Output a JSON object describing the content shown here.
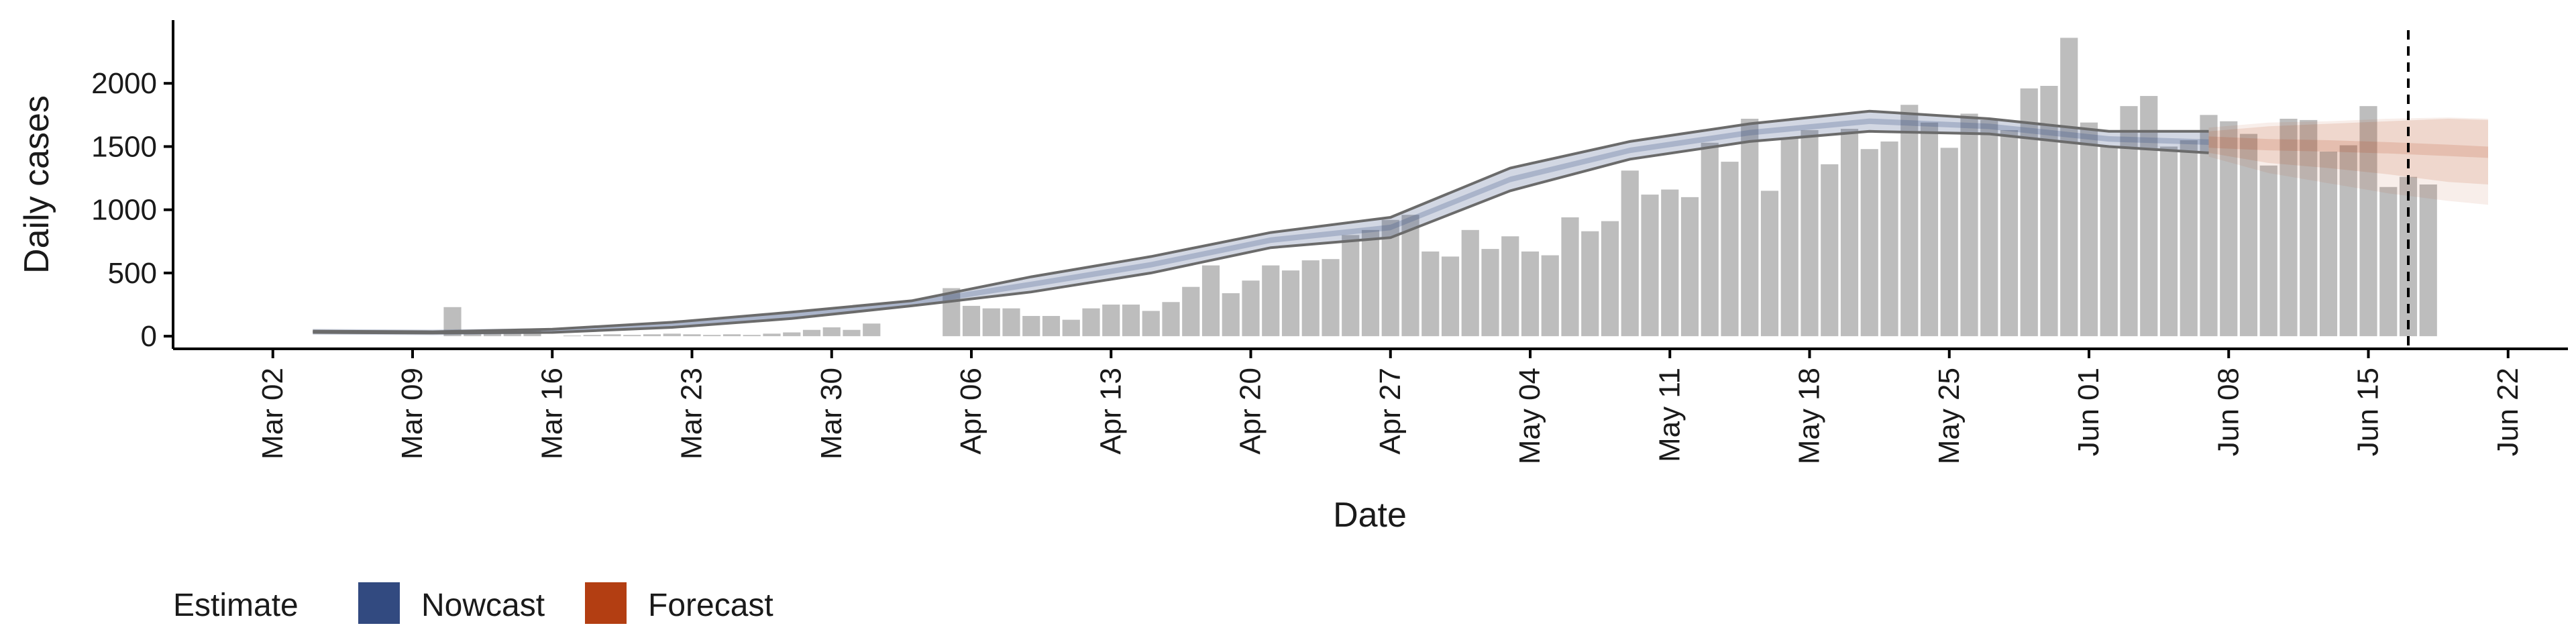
{
  "chart_data": {
    "type": "bar",
    "title": "",
    "xlabel": "Date",
    "ylabel": "Daily cases",
    "x_range": [
      "2020-02-26",
      "2020-06-25"
    ],
    "ylim": [
      -100,
      2500
    ],
    "y_ticks": [
      0,
      500,
      1000,
      1500,
      2000
    ],
    "x_ticks": [
      {
        "date": "2020-03-02",
        "label": "Mar 02"
      },
      {
        "date": "2020-03-09",
        "label": "Mar 09"
      },
      {
        "date": "2020-03-16",
        "label": "Mar 16"
      },
      {
        "date": "2020-03-23",
        "label": "Mar 23"
      },
      {
        "date": "2020-03-30",
        "label": "Mar 30"
      },
      {
        "date": "2020-04-06",
        "label": "Apr 06"
      },
      {
        "date": "2020-04-13",
        "label": "Apr 13"
      },
      {
        "date": "2020-04-20",
        "label": "Apr 20"
      },
      {
        "date": "2020-04-27",
        "label": "Apr 27"
      },
      {
        "date": "2020-05-04",
        "label": "May 04"
      },
      {
        "date": "2020-05-11",
        "label": "May 11"
      },
      {
        "date": "2020-05-18",
        "label": "May 18"
      },
      {
        "date": "2020-05-25",
        "label": "May 25"
      },
      {
        "date": "2020-06-01",
        "label": "Jun 01"
      },
      {
        "date": "2020-06-08",
        "label": "Jun 08"
      },
      {
        "date": "2020-06-15",
        "label": "Jun 15"
      },
      {
        "date": "2020-06-22",
        "label": "Jun 22"
      }
    ],
    "bars": {
      "start_date": "2020-03-04",
      "values": [
        0,
        0,
        0,
        0,
        0,
        0,
        0,
        230,
        30,
        40,
        20,
        50,
        0,
        5,
        10,
        15,
        10,
        15,
        20,
        15,
        10,
        15,
        10,
        20,
        30,
        50,
        70,
        50,
        100,
        0,
        0,
        0,
        380,
        240,
        220,
        220,
        160,
        160,
        130,
        220,
        250,
        250,
        200,
        270,
        390,
        560,
        340,
        440,
        560,
        520,
        600,
        610,
        800,
        840,
        920,
        960,
        670,
        630,
        840,
        690,
        790,
        670,
        640,
        940,
        830,
        910,
        1310,
        1120,
        1160,
        1100,
        1530,
        1380,
        1720,
        1150,
        1570,
        1630,
        1360,
        1640,
        1480,
        1540,
        1830,
        1690,
        1490,
        1760,
        1710,
        1630,
        1960,
        1980,
        2360,
        1690,
        1500,
        1820,
        1900,
        1500,
        1550,
        1750,
        1700,
        1600,
        1350,
        1720,
        1710,
        1460,
        1510,
        1820,
        1180,
        1260,
        1200
      ]
    },
    "series": [
      {
        "name": "Nowcast",
        "color": "#324a80",
        "x": [
          "2020-03-04",
          "2020-03-10",
          "2020-03-16",
          "2020-03-22",
          "2020-03-28",
          "2020-04-03",
          "2020-04-09",
          "2020-04-15",
          "2020-04-21",
          "2020-04-27",
          "2020-05-03",
          "2020-05-09",
          "2020-05-15",
          "2020-05-21",
          "2020-05-27",
          "2020-06-02",
          "2020-06-07"
        ],
        "lower": [
          30,
          25,
          30,
          70,
          140,
          240,
          350,
          500,
          700,
          780,
          1150,
          1400,
          1540,
          1620,
          1600,
          1500,
          1450
        ],
        "upper": [
          40,
          35,
          55,
          110,
          190,
          280,
          470,
          630,
          820,
          940,
          1330,
          1540,
          1680,
          1780,
          1720,
          1620,
          1620
        ],
        "median": [
          35,
          30,
          42,
          90,
          165,
          260,
          410,
          565,
          760,
          860,
          1240,
          1470,
          1610,
          1700,
          1660,
          1560,
          1535
        ]
      },
      {
        "name": "Forecast",
        "color": "#b33e12",
        "x": [
          "2020-06-07",
          "2020-06-10",
          "2020-06-13",
          "2020-06-16",
          "2020-06-19",
          "2020-06-21"
        ],
        "lower": [
          1450,
          1370,
          1330,
          1280,
          1220,
          1200
        ],
        "upper": [
          1620,
          1660,
          1680,
          1700,
          1720,
          1710
        ],
        "median": [
          1535,
          1515,
          1505,
          1490,
          1470,
          1455
        ],
        "outer_lower": [
          1420,
          1290,
          1210,
          1130,
          1070,
          1040
        ],
        "outer_upper": [
          1650,
          1690,
          1700,
          1720,
          1730,
          1720
        ]
      }
    ],
    "envelope": {
      "lower": [
        30,
        25,
        30,
        70,
        140,
        240,
        350,
        500,
        700,
        780,
        1150,
        1400,
        1540,
        1620,
        1600,
        1500,
        1450
      ],
      "upper": [
        40,
        35,
        55,
        110,
        190,
        280,
        470,
        630,
        820,
        940,
        1330,
        1540,
        1680,
        1780,
        1720,
        1620,
        1620
      ]
    },
    "vline_date": "2020-06-17",
    "legend": {
      "title": "Estimate",
      "position": "bottom-left",
      "items": [
        {
          "label": "Nowcast",
          "color": "#324a80"
        },
        {
          "label": "Forecast",
          "color": "#b33e12"
        }
      ]
    },
    "grid": false
  }
}
